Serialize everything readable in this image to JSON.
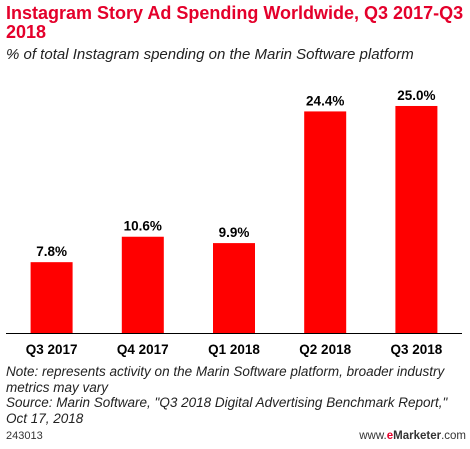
{
  "chart_data": {
    "type": "bar",
    "title": "Instagram Story Ad Spending Worldwide, Q3 2017-Q3 2018",
    "subtitle": "% of total Instagram spending on the Marin Software platform",
    "categories": [
      "Q3 2017",
      "Q4 2017",
      "Q1 2018",
      "Q2 2018",
      "Q3 2018"
    ],
    "values": [
      7.8,
      10.6,
      9.9,
      24.4,
      25.0
    ],
    "value_labels": [
      "7.8%",
      "10.6%",
      "9.9%",
      "24.4%",
      "25.0%"
    ],
    "ylim": [
      0,
      27.2
    ],
    "grid": false,
    "bar_color": "#ff0000"
  },
  "notes": {
    "note": "Note: represents activity on the Marin Software platform, broader industry metrics may vary",
    "source": "Source: Marin Software, \"Q3 2018 Digital Advertising Benchmark Report,\" Oct 17, 2018"
  },
  "footer": {
    "id": "243013",
    "brand_prefix": "www.",
    "brand_em": "e",
    "brand_name": "Marketer",
    "brand_suffix": ".com"
  },
  "colors": {
    "title": "#e4002b",
    "bar": "#ff0000",
    "axis": "#000000"
  }
}
